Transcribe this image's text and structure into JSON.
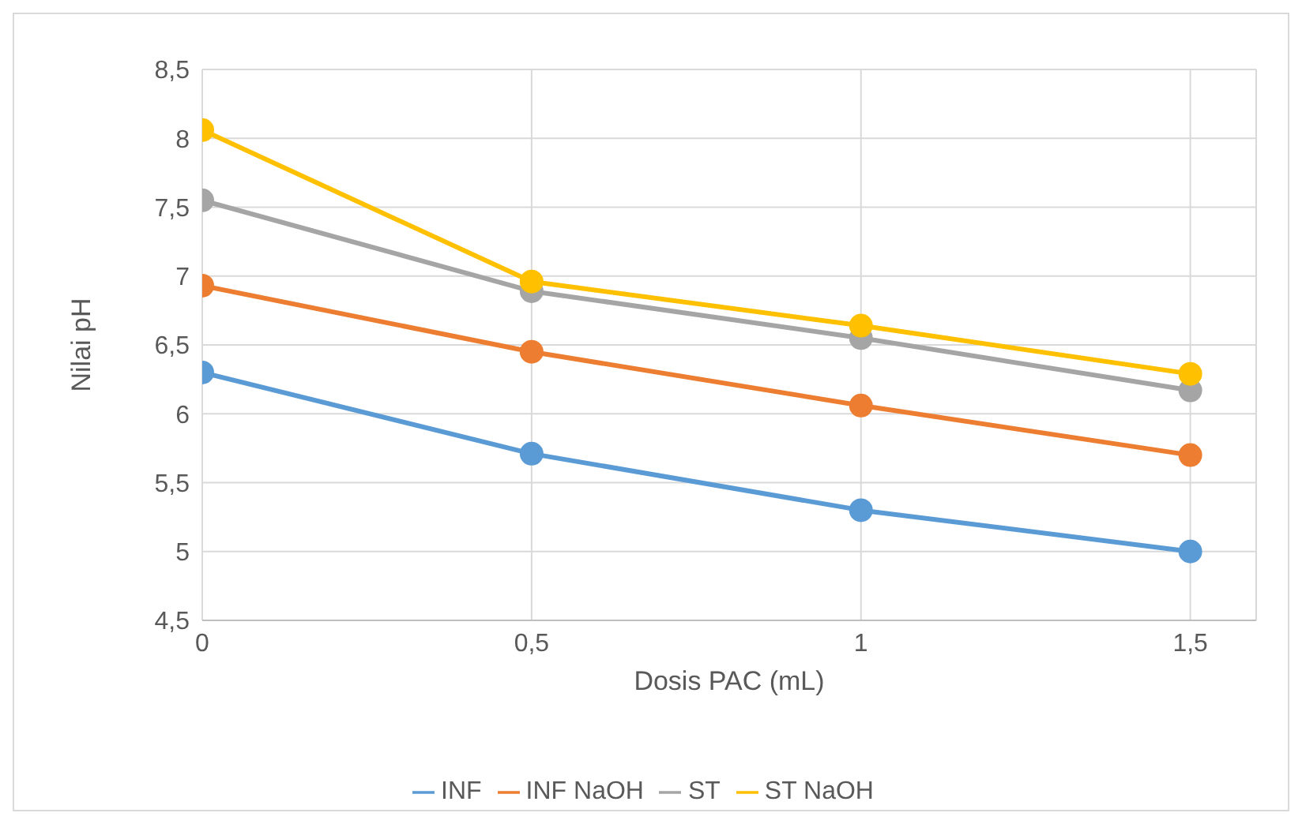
{
  "chart_data": {
    "type": "line",
    "xlabel": "Dosis PAC (mL)",
    "ylabel": "Nilai pH",
    "x": [
      0,
      0.5,
      1,
      1.5
    ],
    "series": [
      {
        "name": "INF",
        "color": "#5b9bd5",
        "values": [
          6.3,
          5.71,
          5.3,
          5.0
        ]
      },
      {
        "name": "INF NaOH",
        "color": "#ed7d31",
        "values": [
          6.93,
          6.45,
          6.06,
          5.7
        ]
      },
      {
        "name": "ST",
        "color": "#a5a5a5",
        "values": [
          7.55,
          6.89,
          6.55,
          6.17
        ]
      },
      {
        "name": "ST NaOH",
        "color": "#ffc000",
        "values": [
          8.06,
          6.96,
          6.64,
          6.29
        ]
      }
    ],
    "xlim": [
      0,
      1.6
    ],
    "xticks": [
      0,
      {
        "value": 0.5,
        "label": "0,5"
      },
      1,
      {
        "value": 1.5,
        "label": "1,5"
      }
    ],
    "ylim": [
      4.5,
      8.5
    ],
    "yticks": [
      {
        "value": 4.5,
        "label": "4,5"
      },
      5,
      {
        "value": 5.5,
        "label": "5,5"
      },
      6,
      {
        "value": 6.5,
        "label": "6,5"
      },
      7,
      {
        "value": 7.5,
        "label": "7,5"
      },
      8,
      {
        "value": 8.5,
        "label": "8,5"
      }
    ],
    "grid": true,
    "legend": "bottom",
    "marker": "circle",
    "line_style": "solid"
  }
}
